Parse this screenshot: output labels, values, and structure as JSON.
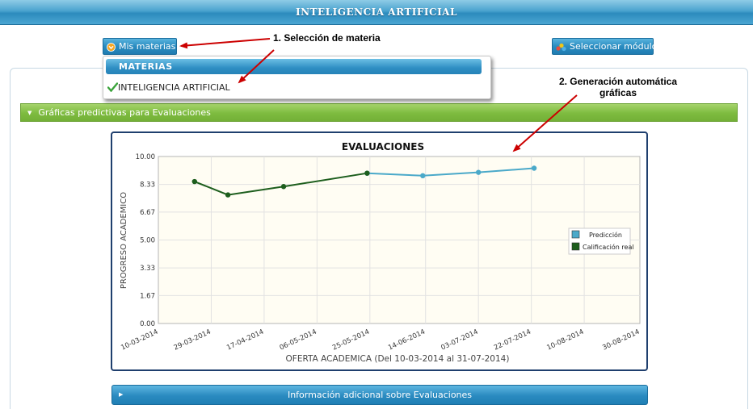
{
  "header": {
    "title": "INTELIGENCIA ARTIFICIAL"
  },
  "toolbar": {
    "subjects_button": "Mis materias",
    "module_button": "Seleccionar módulo"
  },
  "dropdown": {
    "header": "MATERIAS",
    "items": [
      {
        "label": "INTELIGENCIA ARTIFICIAL",
        "selected": true
      }
    ]
  },
  "panel": {
    "title": "Gráficas predictivas para Evaluaciones",
    "footer_title": "Información adicional sobre Evaluaciones"
  },
  "annotations": {
    "step1": "1. Selección de materia",
    "step2_line1": "2. Generación automática",
    "step2_line2": "gráficas"
  },
  "colors": {
    "prediction": "#4aa9c9",
    "actual": "#1d5e1d",
    "arrow": "#cc0000"
  },
  "chart_data": {
    "type": "line",
    "title": "EVALUACIONES",
    "xlabel": "OFERTA ACADEMICA (Del 10-03-2014 al 31-07-2014)",
    "ylabel": "PROGRESO ACADEMICO",
    "ylim": [
      0,
      10
    ],
    "yticks": [
      "0.00",
      "1.67",
      "3.33",
      "5.00",
      "6.67",
      "8.33",
      "10.00"
    ],
    "xticks": [
      "10-03-2014",
      "29-03-2014",
      "17-04-2014",
      "06-05-2014",
      "25-05-2014",
      "14-06-2014",
      "03-07-2014",
      "22-07-2014",
      "10-08-2014",
      "30-08-2014"
    ],
    "xlim": [
      "2014-03-10",
      "2014-08-30"
    ],
    "grid": true,
    "legend_position": "right",
    "series": [
      {
        "name": "Predicción",
        "points": [
          [
            "2014-05-24",
            9.0
          ],
          [
            "2014-06-13",
            8.85
          ],
          [
            "2014-07-03",
            9.05
          ],
          [
            "2014-07-23",
            9.3
          ]
        ]
      },
      {
        "name": "Calificación real",
        "points": [
          [
            "2014-03-23",
            8.5
          ],
          [
            "2014-04-04",
            7.7
          ],
          [
            "2014-04-24",
            8.2
          ],
          [
            "2014-05-24",
            9.0
          ]
        ]
      }
    ]
  }
}
